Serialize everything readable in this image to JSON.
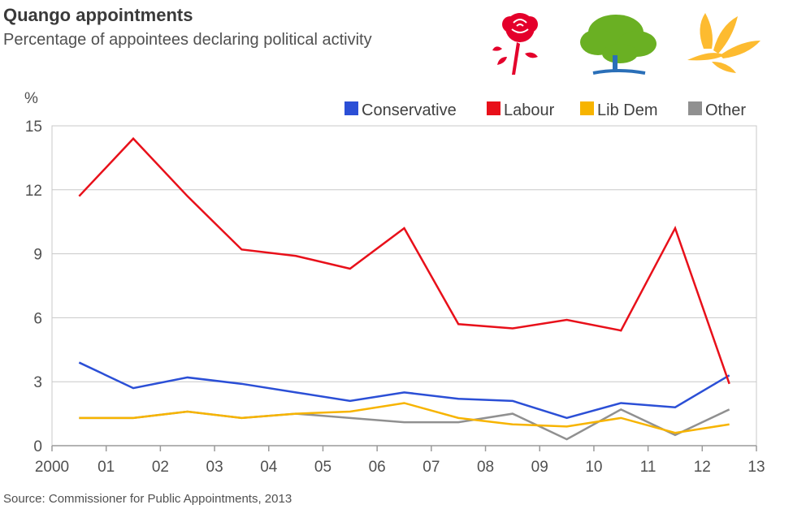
{
  "header": {
    "title": "Quango appointments",
    "subtitle": "Percentage of appointees declaring political activity"
  },
  "footer": {
    "source": "Source: Commissioner for Public Appointments, 2013"
  },
  "logos": [
    {
      "name": "labour-rose-icon",
      "color": "#e4002b"
    },
    {
      "name": "conservative-tree-icon",
      "color": "#6ab023"
    },
    {
      "name": "libdem-bird-icon",
      "color": "#fdbb30"
    }
  ],
  "chart_data": {
    "type": "line",
    "unit_label": "%",
    "x_tick_labels": [
      "2000",
      "01",
      "02",
      "03",
      "04",
      "05",
      "06",
      "07",
      "08",
      "09",
      "10",
      "11",
      "12",
      "13"
    ],
    "xlim": [
      2000,
      2013
    ],
    "ylim": [
      0,
      15
    ],
    "y_ticks": [
      0,
      3,
      6,
      9,
      12,
      15
    ],
    "grid": true,
    "legend_position": "top-right",
    "x": [
      2000.5,
      2001.5,
      2002.5,
      2003.5,
      2004.5,
      2005.5,
      2006.5,
      2007.5,
      2008.5,
      2009.5,
      2010.5,
      2011.5,
      2012.5
    ],
    "series": [
      {
        "name": "Conservative",
        "color": "#2b4fd6",
        "values": [
          3.9,
          2.7,
          3.2,
          2.9,
          2.5,
          2.1,
          2.5,
          2.2,
          2.1,
          1.3,
          2.0,
          1.8,
          3.3
        ]
      },
      {
        "name": "Labour",
        "color": "#e8101a",
        "values": [
          11.7,
          14.4,
          11.7,
          9.2,
          8.9,
          8.3,
          10.2,
          5.7,
          5.5,
          5.9,
          5.4,
          10.2,
          2.9
        ]
      },
      {
        "name": "Lib Dem",
        "color": "#f7b400",
        "values": [
          1.3,
          1.3,
          1.6,
          1.3,
          1.5,
          1.6,
          2.0,
          1.3,
          1.0,
          0.9,
          1.3,
          0.6,
          1.0
        ]
      },
      {
        "name": "Other",
        "color": "#909090",
        "values": [
          1.3,
          1.3,
          1.6,
          1.3,
          1.5,
          1.3,
          1.1,
          1.1,
          1.5,
          0.3,
          1.7,
          0.5,
          1.7
        ]
      }
    ]
  }
}
